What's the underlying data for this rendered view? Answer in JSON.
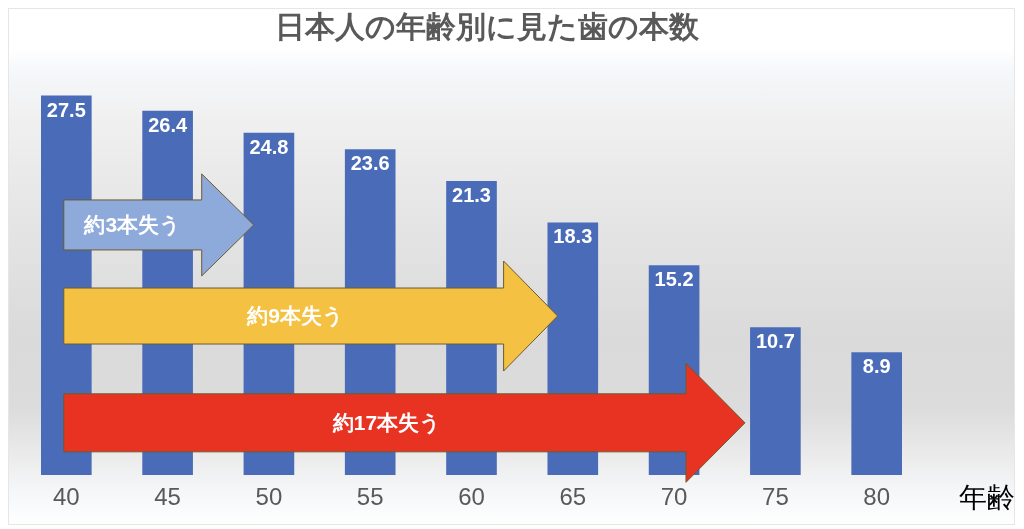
{
  "chart_data": {
    "type": "bar",
    "title": "日本人の年齢別に見た歯の本数",
    "xlabel": "年齢",
    "categories": [
      "40",
      "45",
      "50",
      "55",
      "60",
      "65",
      "70",
      "75",
      "80"
    ],
    "values": [
      27.5,
      26.4,
      24.8,
      23.6,
      21.3,
      18.3,
      15.2,
      10.7,
      8.9
    ],
    "color": "#4a6cb8",
    "data_labels": true,
    "tick_labels": "x",
    "annotations": [
      "約3本失う",
      "約9本失う",
      "約17本失う"
    ]
  }
}
